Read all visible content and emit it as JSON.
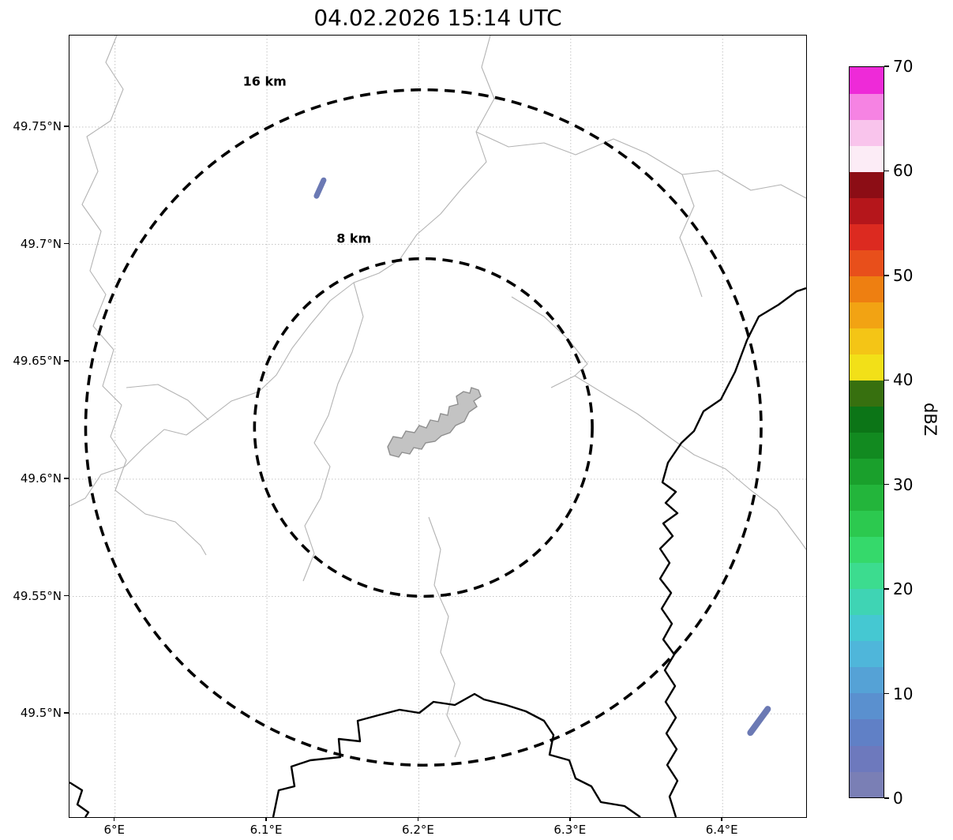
{
  "chart_data": {
    "type": "map",
    "subtype": "weather-radar-reflectivity",
    "title": "04.02.2026 15:14 UTC",
    "x_axis": {
      "range": [
        5.97,
        6.455
      ],
      "grid": true,
      "ticks": [
        {
          "value": 6.0,
          "label": "6°E"
        },
        {
          "value": 6.1,
          "label": "6.1°E"
        },
        {
          "value": 6.2,
          "label": "6.2°E"
        },
        {
          "value": 6.3,
          "label": "6.3°E"
        },
        {
          "value": 6.4,
          "label": "6.4°E"
        }
      ]
    },
    "y_axis": {
      "range": [
        49.456,
        49.789
      ],
      "grid": true,
      "ticks": [
        {
          "value": 49.75,
          "label": "49.75°N"
        },
        {
          "value": 49.7,
          "label": "49.7°N"
        },
        {
          "value": 49.65,
          "label": "49.65°N"
        },
        {
          "value": 49.6,
          "label": "49.6°N"
        },
        {
          "value": 49.55,
          "label": "49.55°N"
        },
        {
          "value": 49.5,
          "label": "49.5°N"
        }
      ]
    },
    "colorbar": {
      "label": "dBZ",
      "min": 0,
      "max": 70,
      "band_dbz": 2.5,
      "ticks": [
        {
          "value": 0,
          "label": "0"
        },
        {
          "value": 10,
          "label": "10"
        },
        {
          "value": 20,
          "label": "20"
        },
        {
          "value": 30,
          "label": "30"
        },
        {
          "value": 40,
          "label": "40"
        },
        {
          "value": 50,
          "label": "50"
        },
        {
          "value": 60,
          "label": "60"
        },
        {
          "value": 70,
          "label": "70"
        }
      ],
      "colors_bottom_to_top": [
        "#7a7fb5",
        "#6d79bd",
        "#6080c6",
        "#5a90cf",
        "#55a2d6",
        "#4fb6da",
        "#45c8d2",
        "#3fd4b4",
        "#3cdc8f",
        "#35d96b",
        "#2cc94f",
        "#23b53b",
        "#1aa02c",
        "#128a20",
        "#0c7517",
        "#37700f",
        "#f2e018",
        "#f4c516",
        "#f2a313",
        "#ee7f11",
        "#e84f1b",
        "#dc2a20",
        "#b5161b",
        "#8c0d15",
        "#fcecf6",
        "#f9c4ec",
        "#f683e3",
        "#ee2ad8"
      ]
    },
    "radar_center": {
      "lon": 6.203,
      "lat": 49.622
    },
    "range_rings": [
      {
        "radius_km": 8,
        "label": "8 km"
      },
      {
        "radius_km": 16,
        "label": "16 km"
      }
    ],
    "echoes": [
      {
        "lon": 6.135,
        "lat": 49.724,
        "dbz_approx": 2.5
      },
      {
        "lon": 6.424,
        "lat": 49.497,
        "dbz_approx": 2.5
      }
    ]
  },
  "colors": {
    "echo": "#6b79b4",
    "grid": "#bdbdbd",
    "admin_line": "#b3b3b3",
    "country_border": "#000000",
    "city_fill": "#c3c3c3",
    "ring": "#000000"
  }
}
